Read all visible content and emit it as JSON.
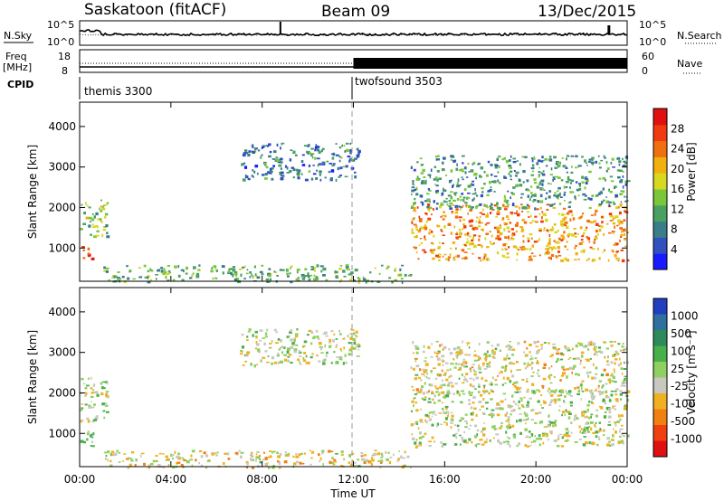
{
  "header": {
    "station": "Saskatoon (fitACF)",
    "beam": "Beam 09",
    "date": "13/Dec/2015"
  },
  "strip": {
    "nsky_label": "N.Sky",
    "nsearch_label": "N.Search",
    "freq_label": "Freq",
    "freq_unit": "[MHz]",
    "nave_label": "Nave",
    "cpid_label": "CPID",
    "noise_left_ticks": [
      "10^5",
      "10^0"
    ],
    "noise_right_ticks": [
      "10^5",
      "10^0"
    ],
    "freq_ticks": [
      "18",
      "8"
    ],
    "nave_ticks": [
      "60",
      "0"
    ],
    "cpid_segments": [
      {
        "name": "themis 3300",
        "start_h": 0,
        "end_h": 12
      },
      {
        "name": "twofsound 3503",
        "start_h": 12,
        "end_h": 24
      }
    ]
  },
  "axes": {
    "ylabel": "Slant Range [km]",
    "xlabel": "Time UT",
    "yticks": [
      "1000",
      "2000",
      "3000",
      "4000"
    ],
    "xticks": [
      "00:00",
      "04:00",
      "08:00",
      "12:00",
      "16:00",
      "20:00",
      "00:00"
    ]
  },
  "colorbars": {
    "power": {
      "label": "Power [dB]",
      "ticks": [
        "4",
        "8",
        "12",
        "16",
        "20",
        "24",
        "28"
      ],
      "colors": [
        "#1a1aff",
        "#3050c0",
        "#3a7d8a",
        "#4aa060",
        "#7ac83a",
        "#d8d820",
        "#f0b010",
        "#f07010",
        "#f03a10",
        "#e01010"
      ]
    },
    "velocity": {
      "label": "Velocity [m s⁻¹]",
      "ticks": [
        "1000",
        "500",
        "100",
        "25",
        "-25",
        "-100",
        "-500",
        "-1000"
      ],
      "colors": [
        "#2040c0",
        "#3070a0",
        "#2e8a5a",
        "#48b048",
        "#90d060",
        "#c8c8c0",
        "#f0b020",
        "#f08010",
        "#f04010",
        "#e01010"
      ]
    }
  },
  "chart_data": [
    {
      "type": "heatmap",
      "panel": "power",
      "x_unit": "hours UT",
      "y_unit": "km",
      "xlim": [
        0,
        24
      ],
      "ylim": [
        180,
        4600
      ],
      "clim": [
        0,
        32
      ],
      "regions": [
        {
          "t0": 0.0,
          "t1": 0.5,
          "r0": 700,
          "r1": 1100,
          "level": 28
        },
        {
          "t0": 0.0,
          "t1": 1.2,
          "r0": 1300,
          "r1": 2200,
          "level": 14
        },
        {
          "t0": 1.0,
          "t1": 14.5,
          "r0": 180,
          "r1": 600,
          "level": 12
        },
        {
          "t0": 7.0,
          "t1": 12.2,
          "r0": 2700,
          "r1": 3600,
          "level": 8
        },
        {
          "t0": 14.5,
          "t1": 24.0,
          "r0": 700,
          "r1": 2100,
          "level": 22
        },
        {
          "t0": 14.5,
          "t1": 24.0,
          "r0": 2000,
          "r1": 3300,
          "level": 10
        }
      ]
    },
    {
      "type": "heatmap",
      "panel": "velocity",
      "x_unit": "hours UT",
      "y_unit": "km",
      "xlim": [
        0,
        24
      ],
      "ylim": [
        180,
        4600
      ],
      "clim": [
        -1000,
        1000
      ],
      "regions": [
        {
          "t0": 0.0,
          "t1": 1.2,
          "r0": 1300,
          "r1": 2400,
          "level": 0
        },
        {
          "t0": 0.0,
          "t1": 0.6,
          "r0": 600,
          "r1": 1100,
          "level": 150
        },
        {
          "t0": 1.0,
          "t1": 14.5,
          "r0": 180,
          "r1": 600,
          "level": -120
        },
        {
          "t0": 7.0,
          "t1": 12.2,
          "r0": 2700,
          "r1": 3600,
          "level": 0
        },
        {
          "t0": 14.5,
          "t1": 24.0,
          "r0": 700,
          "r1": 2100,
          "level": 0
        },
        {
          "t0": 14.5,
          "t1": 24.0,
          "r0": 2000,
          "r1": 3300,
          "level": -100
        }
      ]
    }
  ]
}
